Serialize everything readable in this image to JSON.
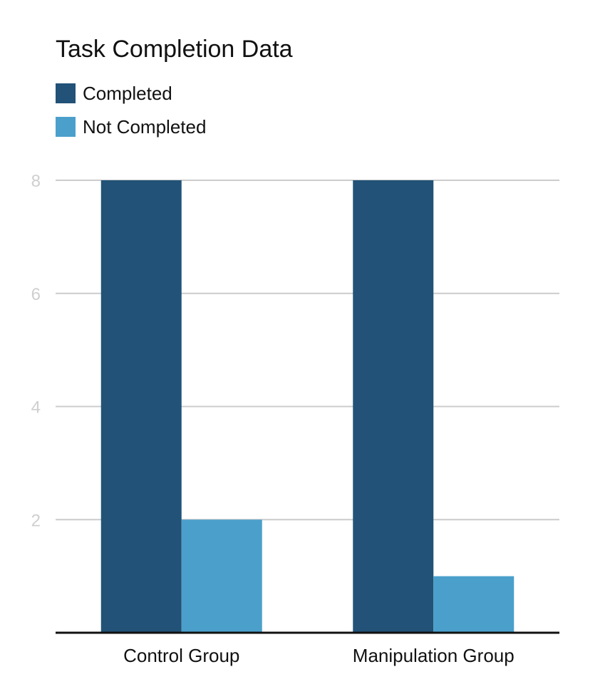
{
  "chart_data": {
    "type": "bar",
    "title": "Task Completion Data",
    "categories": [
      "Control Group",
      "Manipulation Group"
    ],
    "series": [
      {
        "name": "Completed",
        "values": [
          8,
          8
        ],
        "color": "#225277"
      },
      {
        "name": "Not Completed",
        "values": [
          2,
          1
        ],
        "color": "#4BA0CB"
      }
    ],
    "xlabel": "",
    "ylabel": "",
    "ylim": [
      0,
      8
    ],
    "yticks": [
      2,
      4,
      6,
      8
    ],
    "grid": true,
    "legend_position": "top-left"
  }
}
